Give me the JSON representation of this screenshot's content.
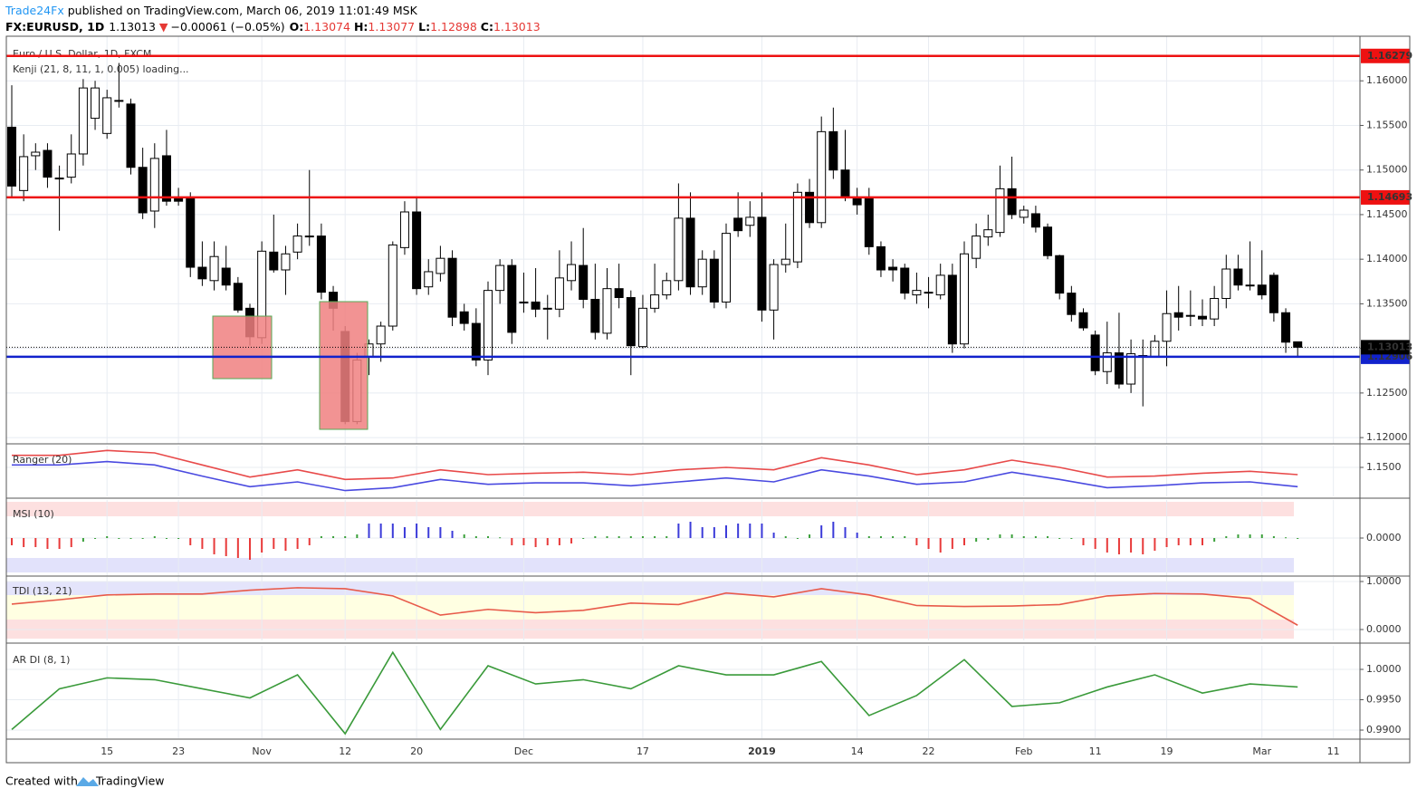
{
  "header": {
    "publisher": "Trade24Fx",
    "published": "published on TradingView.com, March 06, 2019 11:01:49 MSK",
    "symbol": "FX:EURUSD, 1D",
    "last": "1.13013",
    "arrow": "▼",
    "change": "−0.00061 (−0.05%)",
    "o_label": "O:",
    "o": "1.13074",
    "h_label": "H:",
    "h": "1.13077",
    "l_label": "L:",
    "l": "1.12898",
    "c_label": "C:",
    "c": "1.13013"
  },
  "footer": {
    "text": "Created with",
    "brand": "TradingView"
  },
  "chart_data": [
    {
      "type": "candlestick",
      "title": "Euro / U.S. Dollar, 1D, FXCM",
      "subtitle": "Kenji (21, 8, 11, 1, 0.005) loading...",
      "ylim": [
        1.1193,
        1.165
      ],
      "yticks": [
        {
          "value": 1.12,
          "label": "1.12000"
        },
        {
          "value": 1.125,
          "label": "1.12500"
        },
        {
          "value": 1.13,
          "label": "1.13000"
        },
        {
          "value": 1.135,
          "label": "1.13500"
        },
        {
          "value": 1.14,
          "label": "1.14000"
        },
        {
          "value": 1.145,
          "label": "1.14500"
        },
        {
          "value": 1.15,
          "label": "1.15000"
        },
        {
          "value": 1.155,
          "label": "1.15500"
        },
        {
          "value": 1.16,
          "label": "1.16000"
        }
      ],
      "xticks": [
        {
          "value": 8,
          "label": "15"
        },
        {
          "value": 14,
          "label": "23"
        },
        {
          "value": 21,
          "label": "Nov"
        },
        {
          "value": 28,
          "label": "12"
        },
        {
          "value": 34,
          "label": "20"
        },
        {
          "value": 43,
          "label": "Dec"
        },
        {
          "value": 53,
          "label": "17"
        },
        {
          "value": 63,
          "label": "2019"
        },
        {
          "value": 71,
          "label": "14"
        },
        {
          "value": 77,
          "label": "22"
        },
        {
          "value": 85,
          "label": "Feb"
        },
        {
          "value": 91,
          "label": "11"
        },
        {
          "value": 97,
          "label": "19"
        },
        {
          "value": 105,
          "label": "Mar"
        },
        {
          "value": 111,
          "label": "11"
        }
      ],
      "grid": true,
      "hlines": [
        {
          "value": 1.16279,
          "color": "#ee1111"
        },
        {
          "value": 1.14693,
          "color": "#ee1111"
        },
        {
          "value": 1.12906,
          "color": "#1122cc"
        }
      ],
      "open": [
        1.1548,
        1.1477,
        1.1516,
        1.1522,
        1.1491,
        1.1492,
        1.1518,
        1.1558,
        1.1541,
        1.1578,
        1.1574,
        1.1503,
        1.1454,
        1.1516,
        1.1469,
        1.1469,
        1.1391,
        1.1376,
        1.139,
        1.1373,
        1.1345,
        1.1312,
        1.1408,
        1.1388,
        1.1408,
        1.1426,
        1.1426,
        1.1363,
        1.1319,
        1.1218,
        1.129,
        1.1305,
        1.1325,
        1.1413,
        1.1453,
        1.1369,
        1.1384,
        1.1401,
        1.1341,
        1.1328,
        1.1287,
        1.1365,
        1.1393,
        1.1352,
        1.1352,
        1.1345,
        1.1344,
        1.1376,
        1.1393,
        1.1355,
        1.1317,
        1.1367,
        1.1357,
        1.1302,
        1.1345,
        1.136,
        1.1376,
        1.1446,
        1.1369,
        1.14,
        1.1352,
        1.1446,
        1.1438,
        1.1447,
        1.1343,
        1.1394,
        1.1397,
        1.1475,
        1.1441,
        1.1543,
        1.15,
        1.1469,
        1.1469,
        1.1414,
        1.1391,
        1.139,
        1.136,
        1.1363,
        1.136,
        1.1382,
        1.1305,
        1.1401,
        1.1425,
        1.143,
        1.1479,
        1.1447,
        1.1451,
        1.1436,
        1.1404,
        1.1362,
        1.134,
        1.1315,
        1.1274,
        1.1295,
        1.126,
        1.1292,
        1.1291,
        1.1308,
        1.134,
        1.1337,
        1.1336,
        1.1333,
        1.1356,
        1.1389,
        1.1371,
        1.1371,
        1.1382,
        1.134,
        1.13074
      ],
      "high": [
        1.1595,
        1.154,
        1.153,
        1.153,
        1.1505,
        1.154,
        1.1602,
        1.16,
        1.159,
        1.162,
        1.158,
        1.1525,
        1.153,
        1.1545,
        1.148,
        1.1475,
        1.142,
        1.142,
        1.1415,
        1.138,
        1.135,
        1.142,
        1.145,
        1.1415,
        1.144,
        1.15,
        1.144,
        1.137,
        1.1325,
        1.1295,
        1.131,
        1.133,
        1.142,
        1.1465,
        1.147,
        1.14,
        1.1415,
        1.141,
        1.135,
        1.1345,
        1.1375,
        1.14,
        1.14,
        1.1385,
        1.139,
        1.136,
        1.141,
        1.142,
        1.1435,
        1.1395,
        1.139,
        1.1395,
        1.1365,
        1.136,
        1.1395,
        1.1385,
        1.1485,
        1.1475,
        1.141,
        1.141,
        1.144,
        1.1475,
        1.1465,
        1.1475,
        1.14,
        1.144,
        1.1485,
        1.149,
        1.156,
        1.157,
        1.1545,
        1.148,
        1.148,
        1.142,
        1.14,
        1.1395,
        1.1385,
        1.138,
        1.1395,
        1.1395,
        1.142,
        1.144,
        1.145,
        1.1505,
        1.1515,
        1.146,
        1.146,
        1.144,
        1.1405,
        1.137,
        1.1345,
        1.132,
        1.133,
        1.134,
        1.131,
        1.131,
        1.1315,
        1.1365,
        1.137,
        1.1365,
        1.1355,
        1.137,
        1.1405,
        1.1405,
        1.142,
        1.141,
        1.1385,
        1.1345,
        1.13077
      ],
      "low": [
        1.147,
        1.1465,
        1.15,
        1.148,
        1.1432,
        1.1485,
        1.1505,
        1.1545,
        1.1535,
        1.157,
        1.1495,
        1.1445,
        1.1435,
        1.146,
        1.146,
        1.138,
        1.137,
        1.1365,
        1.1365,
        1.134,
        1.1303,
        1.1305,
        1.1385,
        1.136,
        1.14,
        1.1415,
        1.1355,
        1.132,
        1.1215,
        1.1215,
        1.127,
        1.1285,
        1.132,
        1.1405,
        1.136,
        1.136,
        1.1375,
        1.1325,
        1.132,
        1.128,
        1.127,
        1.135,
        1.1305,
        1.134,
        1.1335,
        1.131,
        1.1335,
        1.1365,
        1.1345,
        1.131,
        1.131,
        1.1345,
        1.127,
        1.13,
        1.134,
        1.1355,
        1.1365,
        1.136,
        1.136,
        1.1345,
        1.1345,
        1.1425,
        1.1425,
        1.133,
        1.131,
        1.1385,
        1.139,
        1.1435,
        1.1435,
        1.149,
        1.1465,
        1.145,
        1.1405,
        1.138,
        1.1375,
        1.1355,
        1.135,
        1.1345,
        1.1355,
        1.1295,
        1.13,
        1.139,
        1.1415,
        1.1425,
        1.1445,
        1.144,
        1.143,
        1.14,
        1.1355,
        1.133,
        1.132,
        1.127,
        1.126,
        1.1255,
        1.125,
        1.1235,
        1.129,
        1.128,
        1.132,
        1.1325,
        1.1325,
        1.1325,
        1.1345,
        1.1365,
        1.1365,
        1.1355,
        1.133,
        1.1295,
        1.12898
      ],
      "close": [
        1.1482,
        1.1515,
        1.152,
        1.1492,
        1.149,
        1.1518,
        1.1592,
        1.1592,
        1.1581,
        1.1577,
        1.1503,
        1.1452,
        1.1513,
        1.1465,
        1.1465,
        1.1391,
        1.1378,
        1.1403,
        1.1371,
        1.1343,
        1.1313,
        1.1409,
        1.1388,
        1.1406,
        1.1426,
        1.1426,
        1.1363,
        1.1345,
        1.1218,
        1.1287,
        1.1305,
        1.1325,
        1.1416,
        1.1453,
        1.1367,
        1.1386,
        1.1401,
        1.1335,
        1.1328,
        1.1287,
        1.1365,
        1.1393,
        1.1318,
        1.1351,
        1.1344,
        1.1344,
        1.1379,
        1.1394,
        1.1355,
        1.1318,
        1.1367,
        1.1357,
        1.1303,
        1.1345,
        1.136,
        1.1376,
        1.1446,
        1.1369,
        1.14,
        1.1352,
        1.1429,
        1.1432,
        1.1447,
        1.1343,
        1.1394,
        1.14,
        1.1475,
        1.1441,
        1.1543,
        1.15,
        1.1469,
        1.1461,
        1.1414,
        1.1388,
        1.1388,
        1.1362,
        1.1365,
        1.1363,
        1.1382,
        1.1305,
        1.1406,
        1.1426,
        1.1433,
        1.1479,
        1.145,
        1.1455,
        1.1436,
        1.1404,
        1.1362,
        1.1338,
        1.1323,
        1.1275,
        1.1295,
        1.126,
        1.1294,
        1.1292,
        1.1308,
        1.1339,
        1.1335,
        1.1337,
        1.1333,
        1.1356,
        1.1389,
        1.1371,
        1.1371,
        1.136,
        1.134,
        1.1307,
        1.13013
      ]
    },
    {
      "type": "line",
      "title": "Ranger (20)",
      "ylim": [
        1.144,
        1.1545
      ],
      "yticks": [
        {
          "value": 1.15,
          "label": "1.1500"
        }
      ],
      "x": [
        0,
        4,
        8,
        12,
        16,
        20,
        24,
        28,
        32,
        36,
        40,
        44,
        48,
        52,
        56,
        60,
        64,
        68,
        72,
        76,
        80,
        84,
        88,
        92,
        96,
        100,
        104,
        108
      ],
      "series": [
        {
          "color": "#e84a4a",
          "values": [
            1.1525,
            1.1525,
            1.1535,
            1.153,
            1.1505,
            1.148,
            1.1495,
            1.1475,
            1.1478,
            1.1495,
            1.1485,
            1.1488,
            1.149,
            1.1485,
            1.1495,
            1.15,
            1.1495,
            1.152,
            1.1505,
            1.1485,
            1.1495,
            1.1515,
            1.15,
            1.148,
            1.1482,
            1.1488,
            1.1492,
            1.1485
          ]
        },
        {
          "color": "#4a4ae0",
          "values": [
            1.1505,
            1.1505,
            1.1512,
            1.1505,
            1.1482,
            1.146,
            1.147,
            1.1452,
            1.1458,
            1.1475,
            1.1465,
            1.1468,
            1.1468,
            1.1462,
            1.147,
            1.1478,
            1.147,
            1.1495,
            1.1482,
            1.1465,
            1.147,
            1.149,
            1.1475,
            1.1458,
            1.1462,
            1.1468,
            1.147,
            1.146
          ]
        }
      ]
    },
    {
      "type": "histogram",
      "title": "MSI (10)",
      "ylim": [
        -1.05,
        1.05
      ],
      "yticks": [
        {
          "value": 0,
          "label": "0.0000"
        }
      ],
      "bands": [
        {
          "from": 0.6,
          "to": 1,
          "color": "#fde0e0"
        },
        {
          "from": -0.95,
          "to": -0.55,
          "color": "#e2e2fb"
        }
      ],
      "up_color": "#3b3bd9",
      "down_color": "#e83a3a",
      "flat_color": "#3aa03a",
      "values": [
        -0.2,
        -0.25,
        -0.25,
        -0.3,
        -0.3,
        -0.25,
        -0.1,
        0,
        0.05,
        0,
        -0.02,
        0,
        0.05,
        0,
        0,
        -0.2,
        -0.3,
        -0.45,
        -0.5,
        -0.55,
        -0.6,
        -0.4,
        -0.3,
        -0.35,
        -0.3,
        -0.2,
        0.05,
        0.05,
        0.05,
        0.1,
        0.4,
        0.4,
        0.4,
        0.3,
        0.4,
        0.3,
        0.3,
        0.2,
        0.1,
        0.05,
        0.05,
        0.02,
        -0.2,
        -0.2,
        -0.25,
        -0.2,
        -0.2,
        -0.15,
        0,
        0.05,
        0.05,
        0.05,
        0.05,
        0.05,
        0.05,
        0.05,
        0.4,
        0.45,
        0.3,
        0.3,
        0.35,
        0.4,
        0.4,
        0.4,
        0.15,
        0.05,
        0,
        0.1,
        0.35,
        0.45,
        0.3,
        0.15,
        0.05,
        0.05,
        0.05,
        0.05,
        -0.2,
        -0.3,
        -0.4,
        -0.3,
        -0.2,
        -0.1,
        -0.05,
        0.1,
        0.1,
        0.05,
        0.05,
        0.05,
        0,
        0,
        -0.2,
        -0.3,
        -0.4,
        -0.45,
        -0.4,
        -0.45,
        -0.35,
        -0.25,
        -0.2,
        -0.2,
        -0.2,
        -0.1,
        0.05,
        0.1,
        0.1,
        0.1,
        0.05,
        0.02,
        -0.02
      ]
    },
    {
      "type": "line",
      "title": "TDI (13, 21)",
      "ylim": [
        -0.226,
        1.094
      ],
      "yticks": [
        {
          "value": 1,
          "label": "1.0000"
        },
        {
          "value": 0,
          "label": "0.0000"
        }
      ],
      "bands": [
        {
          "from": 0.717,
          "to": 1,
          "color": "#e4e4fb"
        },
        {
          "from": 0.208,
          "to": 0.717,
          "color": "#ffffe2"
        },
        {
          "from": -0.19,
          "to": 0.208,
          "color": "#fde0e0"
        }
      ],
      "x": [
        0,
        4,
        8,
        12,
        16,
        20,
        24,
        28,
        32,
        36,
        40,
        44,
        48,
        52,
        56,
        60,
        64,
        68,
        72,
        76,
        80,
        84,
        88,
        92,
        96,
        100,
        104,
        108
      ],
      "series": [
        {
          "color": "#e85a4a",
          "values": [
            0.53,
            0.62,
            0.72,
            0.74,
            0.74,
            0.82,
            0.87,
            0.85,
            0.7,
            0.3,
            0.42,
            0.35,
            0.4,
            0.55,
            0.52,
            0.76,
            0.68,
            0.85,
            0.72,
            0.5,
            0.48,
            0.49,
            0.52,
            0.7,
            0.75,
            0.74,
            0.65,
            0.09
          ]
        }
      ]
    },
    {
      "type": "line",
      "title": "AR DI (8, 1)",
      "ylim": [
        0.98866,
        1.00388
      ],
      "yticks": [
        {
          "value": 1,
          "label": "1.0000"
        },
        {
          "value": 0.995,
          "label": "0.9950"
        },
        {
          "value": 0.99,
          "label": "0.9900"
        }
      ],
      "x": [
        0,
        4,
        8,
        12,
        16,
        20,
        24,
        28,
        32,
        36,
        40,
        44,
        48,
        52,
        56,
        60,
        64,
        68,
        72,
        76,
        80,
        84,
        88,
        92,
        96,
        100,
        104,
        108
      ],
      "series": [
        {
          "color": "#3a9a3a",
          "values": [
            0.9901,
            0.9968,
            0.9986,
            0.9983,
            0.9968,
            0.9953,
            0.9991,
            0.9894,
            1.0028,
            0.9901,
            1.0006,
            0.9976,
            0.9983,
            0.9968,
            1.0006,
            0.9991,
            0.9991,
            1.0013,
            0.9924,
            0.9957,
            1.0016,
            0.9939,
            0.9945,
            0.9971,
            0.9991,
            0.9961,
            0.9976,
            0.9971
          ]
        }
      ]
    }
  ]
}
